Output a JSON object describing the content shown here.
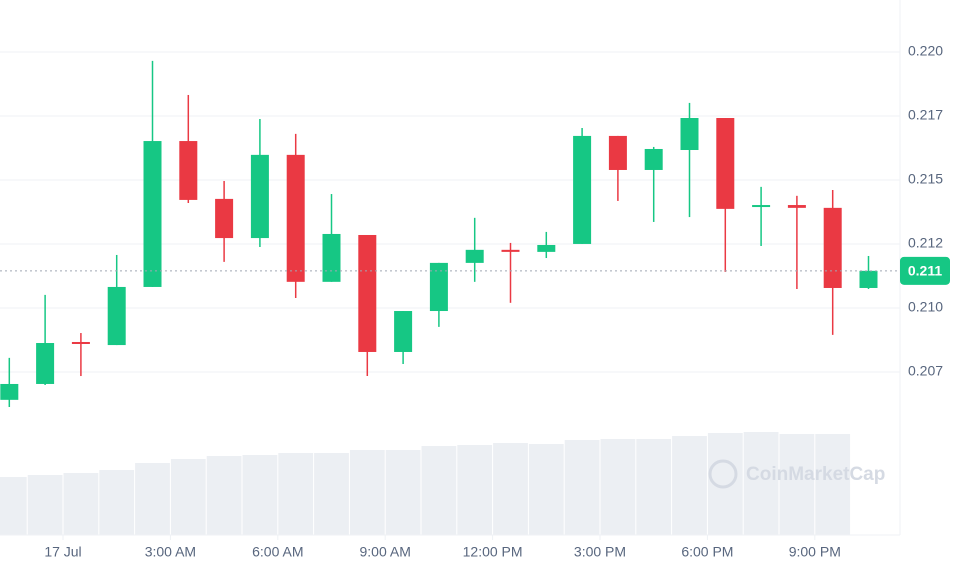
{
  "chart_data": {
    "type": "candlestick",
    "x": [
      -1.5,
      -0.5,
      0.5,
      1.5,
      2.5,
      3.5,
      4.5,
      5.5,
      6.5,
      7.5,
      8.5,
      9.5,
      10.5,
      11.5,
      12.5,
      13.5,
      14.5,
      15.5,
      16.5,
      17.5,
      18.5,
      19.5,
      20.5,
      21.5,
      22.5
    ],
    "open": [
      0.20641,
      0.20703,
      0.20867,
      0.20855,
      0.21082,
      0.21652,
      0.21426,
      0.21273,
      0.21598,
      0.21102,
      0.21285,
      0.20828,
      0.20988,
      0.21176,
      0.21227,
      0.21219,
      0.2125,
      0.21672,
      0.21539,
      0.21617,
      0.21742,
      0.21398,
      0.21402,
      0.21391,
      0.21078
    ],
    "high": [
      0.20805,
      0.21051,
      0.20902,
      0.21207,
      0.21965,
      0.21832,
      0.21496,
      0.21738,
      0.2168,
      0.21445,
      0.21285,
      0.20988,
      0.21176,
      0.21352,
      0.21254,
      0.21297,
      0.21703,
      0.21672,
      0.21629,
      0.21801,
      0.21742,
      0.21473,
      0.21438,
      0.21461,
      0.21203
    ],
    "low": [
      0.20613,
      0.20699,
      0.20734,
      0.20855,
      0.21082,
      0.2141,
      0.2118,
      0.21238,
      0.21039,
      0.21102,
      0.20734,
      0.20781,
      0.20926,
      0.21102,
      0.2102,
      0.21195,
      0.2125,
      0.21418,
      0.21336,
      0.21355,
      0.21141,
      0.21242,
      0.21074,
      0.20895,
      0.21074
    ],
    "close": [
      0.20703,
      0.20863,
      0.20863,
      0.21082,
      0.21652,
      0.21422,
      0.21273,
      0.21598,
      0.21102,
      0.21289,
      0.20828,
      0.20988,
      0.21176,
      0.21227,
      0.21219,
      0.21246,
      0.21672,
      0.21539,
      0.21621,
      0.21742,
      0.21387,
      0.21402,
      0.21391,
      0.21078,
      0.21145
    ],
    "volume": [
      58,
      60,
      62,
      65,
      72,
      76,
      79,
      80,
      82,
      82,
      85,
      85,
      89,
      90,
      92,
      91,
      95,
      96,
      96,
      99,
      102,
      103,
      101,
      101,
      null
    ],
    "up_color": "#16c784",
    "down_color": "#ea3943",
    "volume_color": "#eceff3",
    "xlim": [
      -1.76,
      23.38
    ],
    "xticks": [
      {
        "value": 0,
        "label": "17 Jul"
      },
      {
        "value": 3,
        "label": "3:00 AM"
      },
      {
        "value": 6,
        "label": "6:00 AM"
      },
      {
        "value": 9,
        "label": "9:00 AM"
      },
      {
        "value": 12,
        "label": "12:00 PM"
      },
      {
        "value": 15,
        "label": "3:00 PM"
      },
      {
        "value": 18,
        "label": "6:00 PM"
      },
      {
        "value": 21,
        "label": "9:00 PM"
      }
    ],
    "ylim": [
      0.20113,
      0.22203
    ],
    "yticks": [
      {
        "value": 0.2075,
        "label": "0.207"
      },
      {
        "value": 0.21,
        "label": "0.210"
      },
      {
        "value": 0.2125,
        "label": "0.212"
      },
      {
        "value": 0.215,
        "label": "0.215"
      },
      {
        "value": 0.2175,
        "label": "0.217"
      },
      {
        "value": 0.22,
        "label": "0.220"
      }
    ],
    "grid": true,
    "last_price": {
      "value": 0.21145,
      "label": "0.211"
    },
    "watermark": "CoinMarketCap"
  }
}
